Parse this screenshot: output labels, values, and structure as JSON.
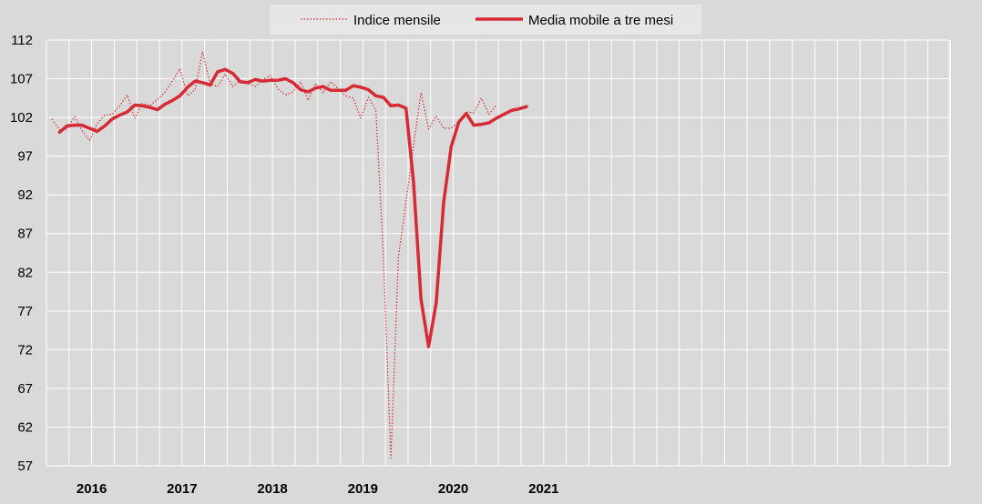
{
  "chart_data": {
    "type": "line",
    "title": "",
    "xlabel": "",
    "ylabel": "",
    "ylim": [
      57,
      112
    ],
    "yticks": [
      57,
      62,
      67,
      72,
      77,
      82,
      87,
      92,
      97,
      102,
      107,
      112
    ],
    "years": [
      "2016",
      "2017",
      "2018",
      "2019",
      "2020",
      "2021"
    ],
    "grid": true,
    "legend_position": "top-center",
    "x_start": "2016-01",
    "series": [
      {
        "name": "Indice mensile",
        "style": "dotted",
        "color": "#d62b35",
        "values": [
          101.8,
          100.4,
          100.5,
          102.1,
          100.3,
          99.0,
          101.2,
          102.3,
          102.4,
          103.5,
          104.9,
          101.9,
          103.8,
          103.5,
          104.3,
          105.3,
          106.7,
          108.3,
          104.8,
          105.6,
          110.5,
          106.3,
          106.0,
          107.6,
          106.0,
          106.8,
          106.4,
          106.0,
          106.9,
          107.4,
          105.7,
          104.9,
          105.3,
          106.6,
          104.2,
          106.4,
          105.2,
          106.6,
          105.7,
          104.8,
          104.5,
          101.9,
          104.6,
          103.0,
          84.0,
          58.0,
          84.0,
          91.0,
          98.5,
          105.2,
          100.5,
          102.2,
          100.6,
          100.6,
          101.4,
          102.7,
          102.6,
          104.5,
          102.4,
          103.6
        ]
      },
      {
        "name": "Media mobile a tre mesi",
        "style": "solid",
        "color": "#d62b35",
        "x_offset": 1,
        "values": [
          100.1,
          100.9,
          101.0,
          101.0,
          100.6,
          100.2,
          100.9,
          101.8,
          102.3,
          102.7,
          103.6,
          103.5,
          103.3,
          103.0,
          103.7,
          104.2,
          104.8,
          105.9,
          106.7,
          106.5,
          106.2,
          107.9,
          108.2,
          107.7,
          106.6,
          106.5,
          106.9,
          106.7,
          106.8,
          106.8,
          107.0,
          106.5,
          105.6,
          105.3,
          105.8,
          106.0,
          105.5,
          105.5,
          105.5,
          106.1,
          105.9,
          105.6,
          104.8,
          104.6,
          103.5,
          103.6,
          103.2,
          93.6,
          78.5,
          72.4,
          78.0,
          91.0,
          98.2,
          101.4,
          102.5,
          101.0,
          101.1,
          101.3,
          101.9,
          102.4,
          102.9,
          103.1,
          103.4
        ]
      }
    ]
  }
}
